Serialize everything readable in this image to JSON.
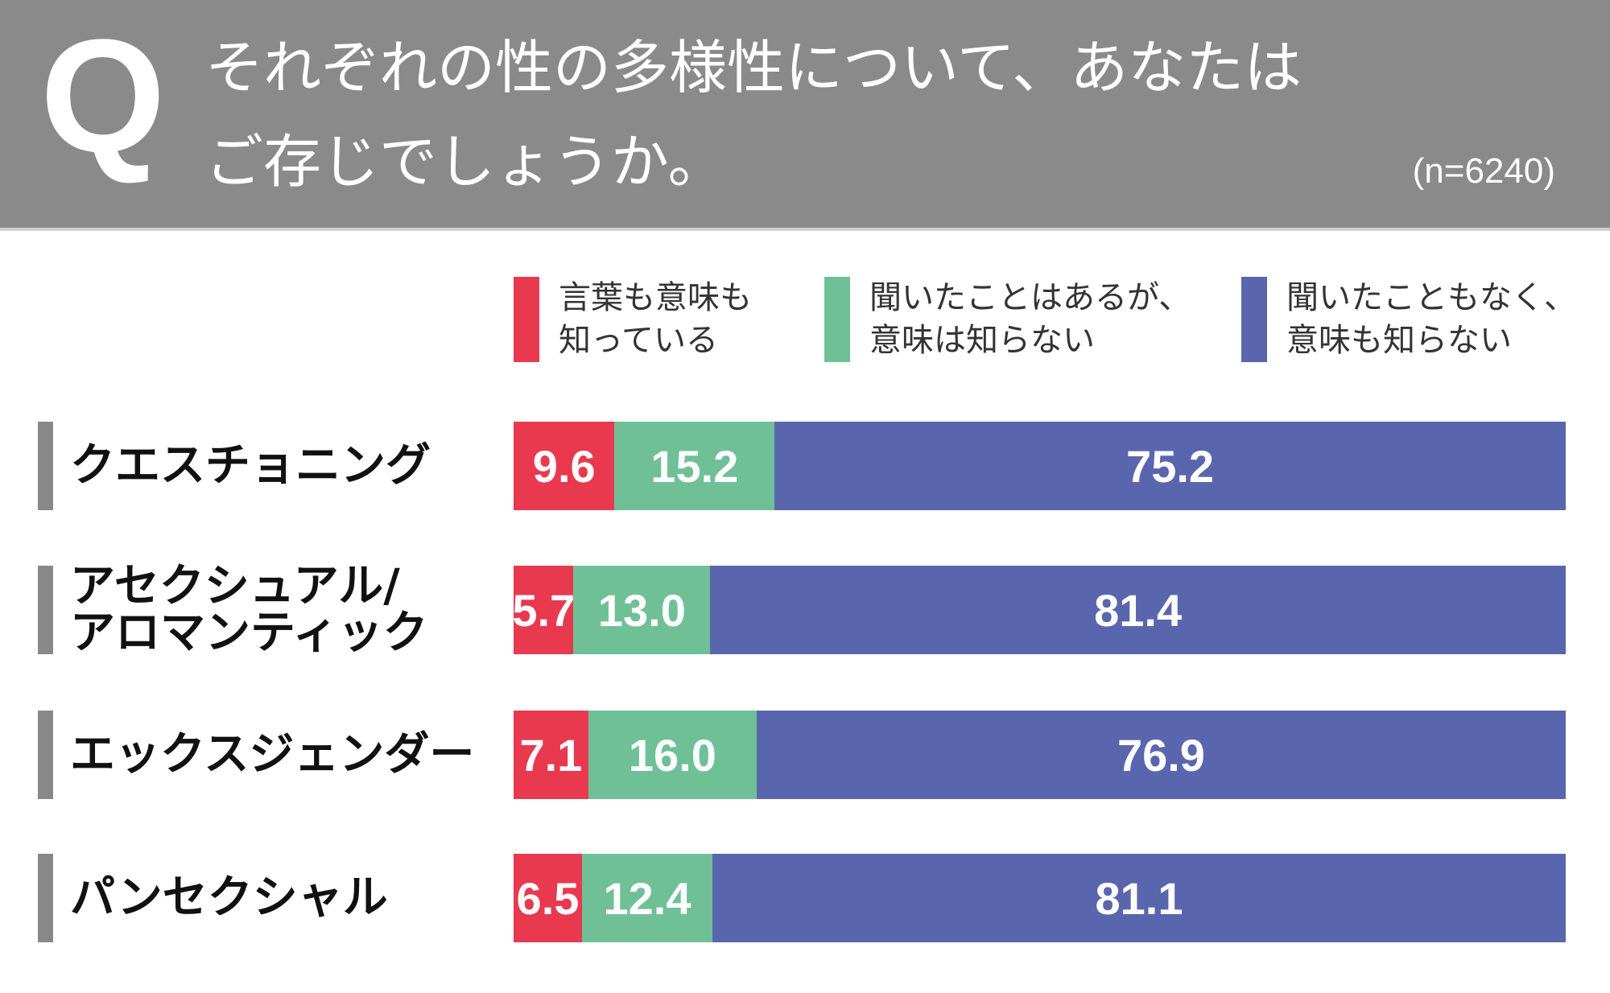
{
  "header": {
    "q_mark": "Q",
    "title_line1": "それぞれの性の多様性について、あなたは",
    "title_line2": "ご存じでしょうか。",
    "sample_size": "(n=6240)"
  },
  "chart_data": {
    "type": "bar",
    "orientation": "horizontal",
    "stacked": true,
    "unit": "%",
    "categories": [
      "クエスチョニング",
      "アセクシュアル/アロマンティック",
      "エックスジェンダー",
      "パンセクシャル"
    ],
    "category_lines": [
      [
        "クエスチョニング"
      ],
      [
        "アセクシュアル/",
        "アロマンティック"
      ],
      [
        "エックスジェンダー"
      ],
      [
        "パンセクシャル"
      ]
    ],
    "legend_placement": "top",
    "series": [
      {
        "name": "言葉も意味も知っている",
        "name_lines": [
          "言葉も意味も",
          "知っている"
        ],
        "color": "#e8394e",
        "values": [
          9.6,
          5.7,
          7.1,
          6.5
        ],
        "labels": [
          "9.6",
          "5.7",
          "7.1",
          "6.5"
        ]
      },
      {
        "name": "聞いたことはあるが、意味は知らない",
        "name_lines": [
          "聞いたことはあるが、",
          "意味は知らない"
        ],
        "color": "#6fc096",
        "values": [
          15.2,
          13.0,
          16.0,
          12.4
        ],
        "labels": [
          "15.2",
          "13.0",
          "16.0",
          "12.4"
        ]
      },
      {
        "name": "聞いたこともなく、意味も知らない",
        "name_lines": [
          "聞いたこともなく、",
          "意味も知らない"
        ],
        "color": "#5966ad",
        "values": [
          75.2,
          81.4,
          76.9,
          81.1
        ],
        "labels": [
          "75.2",
          "81.4",
          "76.9",
          "81.1"
        ]
      }
    ],
    "xlim": [
      0,
      100
    ]
  }
}
